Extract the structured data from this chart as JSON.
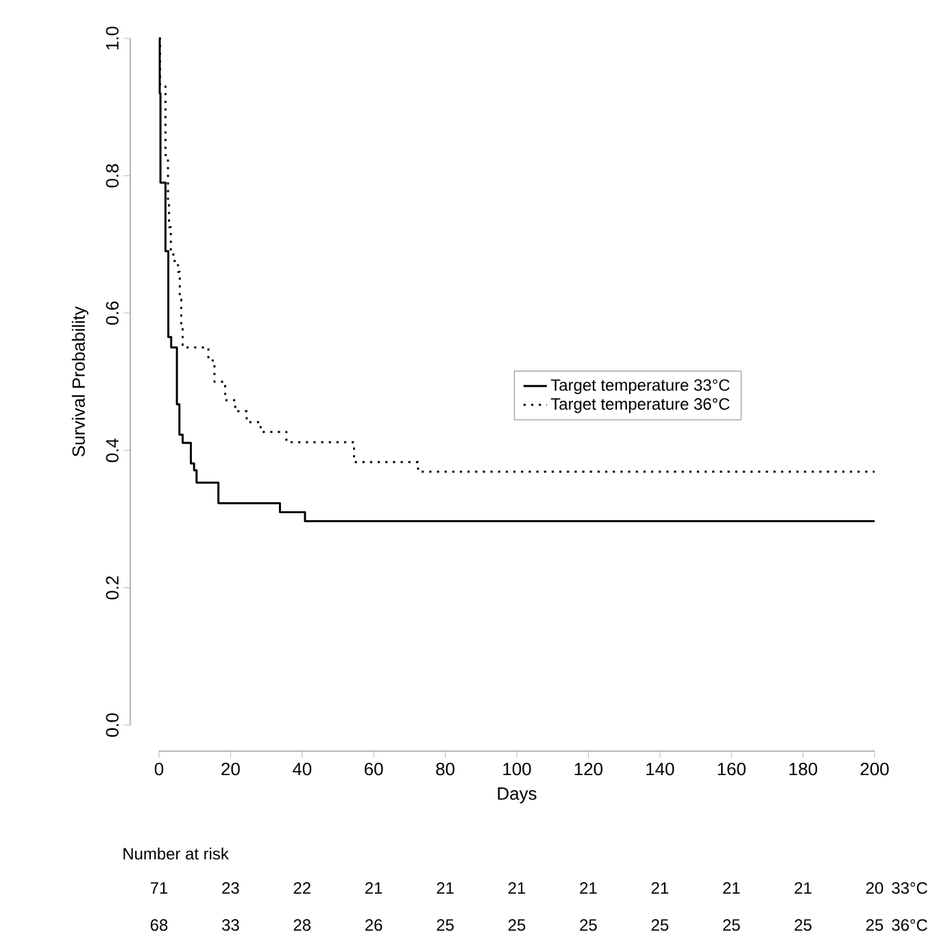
{
  "chart_data": {
    "type": "step",
    "xlabel": "Days",
    "ylabel": "Survival Probability",
    "xlim": [
      0,
      200
    ],
    "ylim": [
      0,
      1
    ],
    "xticks": [
      0,
      20,
      40,
      60,
      80,
      100,
      120,
      140,
      160,
      180,
      200
    ],
    "yticks": [
      {
        "value": 0,
        "label": "0.0"
      },
      {
        "value": 0.2,
        "label": "0.2"
      },
      {
        "value": 0.4,
        "label": "0.4"
      },
      {
        "value": 0.6,
        "label": "0.6"
      },
      {
        "value": 0.8,
        "label": "0.8"
      },
      {
        "value": 1,
        "label": "1.0"
      }
    ],
    "grid": false,
    "legend": "right",
    "marker": "none",
    "series": [
      {
        "name": "Target temperature 33°C",
        "color": "#000000",
        "line_style": "solid",
        "x": [
          0,
          0.2,
          0.4,
          1.8,
          2.6,
          3.4,
          5.0,
          5.7,
          6.6,
          8.9,
          9.8,
          10.5,
          16.6,
          33.8,
          40.8,
          200
        ],
        "values": [
          1,
          0.92,
          0.79,
          0.69,
          0.565,
          0.55,
          0.467,
          0.423,
          0.411,
          0.381,
          0.371,
          0.353,
          0.323,
          0.31,
          0.297,
          0.297
        ]
      },
      {
        "name": "Target temperature 36°C",
        "color": "#000000",
        "line_style": "dotted",
        "x": [
          0,
          0.3,
          1.8,
          2.5,
          2.8,
          3.3,
          4.0,
          5.3,
          5.8,
          6.2,
          6.6,
          13.8,
          15.5,
          18.5,
          21.3,
          24.5,
          28.4,
          35.6,
          54.5,
          72.4,
          200
        ],
        "values": [
          1,
          0.93,
          0.83,
          0.76,
          0.725,
          0.69,
          0.676,
          0.66,
          0.62,
          0.58,
          0.55,
          0.531,
          0.5,
          0.473,
          0.457,
          0.441,
          0.427,
          0.412,
          0.383,
          0.369,
          0.369
        ]
      }
    ],
    "annotations": [
      "Number at risk",
      "71",
      "23",
      "22",
      "21",
      "21",
      "21",
      "21",
      "21",
      "21",
      "21",
      "20",
      "33°C",
      "68",
      "33",
      "28",
      "26",
      "25",
      "25",
      "25",
      "25",
      "25",
      "25",
      "25",
      "36°C"
    ]
  }
}
